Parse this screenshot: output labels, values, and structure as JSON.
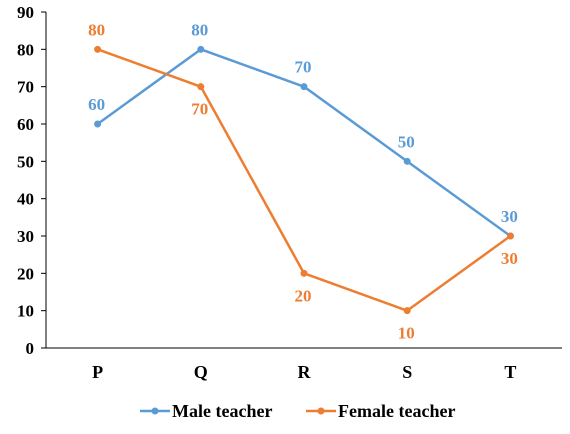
{
  "chart_data": {
    "type": "line",
    "categories": [
      "P",
      "Q",
      "R",
      "S",
      "T"
    ],
    "ylim": [
      0,
      90
    ],
    "yticks": [
      "0",
      "10",
      "20",
      "30",
      "40",
      "50",
      "60",
      "70",
      "80",
      "90"
    ],
    "grid": false,
    "legend_position": "bottom",
    "series": [
      {
        "name": "Male teacher",
        "color": "#5b9bd5",
        "values": [
          60,
          80,
          70,
          50,
          30
        ],
        "labels": [
          "60",
          "80",
          "70",
          "50",
          "30"
        ],
        "label_side": [
          "above",
          "above",
          "above",
          "above",
          "above"
        ]
      },
      {
        "name": "Female teacher",
        "color": "#ed7d31",
        "values": [
          80,
          70,
          20,
          10,
          30
        ],
        "labels": [
          "80",
          "70",
          "20",
          "10",
          "30"
        ],
        "label_side": [
          "above",
          "below",
          "below",
          "below",
          "below"
        ]
      }
    ]
  }
}
